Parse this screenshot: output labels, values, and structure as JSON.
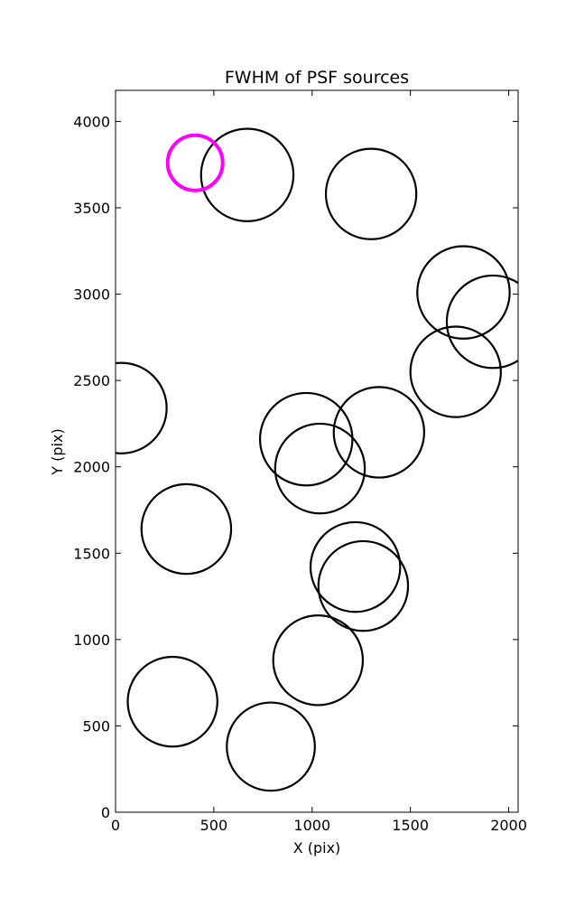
{
  "chart_data": {
    "type": "scatter",
    "title": "FWHM of PSF sources",
    "xlabel": "X (pix)",
    "ylabel": "Y (pix)",
    "xlim": [
      0,
      2048
    ],
    "ylim": [
      0,
      4180
    ],
    "xticks": [
      0,
      500,
      1000,
      1500,
      2000
    ],
    "yticks": [
      0,
      500,
      1000,
      1500,
      2000,
      2500,
      3000,
      3500,
      4000
    ],
    "grid": false,
    "series": [
      {
        "color": "#000000",
        "marker": "open-circle",
        "points": [
          {
            "x": 670,
            "y": 3690,
            "r": 235
          },
          {
            "x": 1300,
            "y": 3580,
            "r": 230
          },
          {
            "x": 1770,
            "y": 3010,
            "r": 235
          },
          {
            "x": 1920,
            "y": 2840,
            "r": 235
          },
          {
            "x": 1730,
            "y": 2550,
            "r": 230
          },
          {
            "x": 30,
            "y": 2340,
            "r": 230
          },
          {
            "x": 970,
            "y": 2160,
            "r": 235
          },
          {
            "x": 1340,
            "y": 2200,
            "r": 230
          },
          {
            "x": 1040,
            "y": 1990,
            "r": 228
          },
          {
            "x": 360,
            "y": 1640,
            "r": 228
          },
          {
            "x": 1220,
            "y": 1420,
            "r": 228
          },
          {
            "x": 1260,
            "y": 1310,
            "r": 228
          },
          {
            "x": 1030,
            "y": 880,
            "r": 228
          },
          {
            "x": 290,
            "y": 640,
            "r": 228
          },
          {
            "x": 790,
            "y": 380,
            "r": 224
          }
        ]
      },
      {
        "color": "#ff00ff",
        "marker": "open-circle",
        "points": [
          {
            "x": 405,
            "y": 3760,
            "r": 140
          }
        ]
      }
    ]
  }
}
